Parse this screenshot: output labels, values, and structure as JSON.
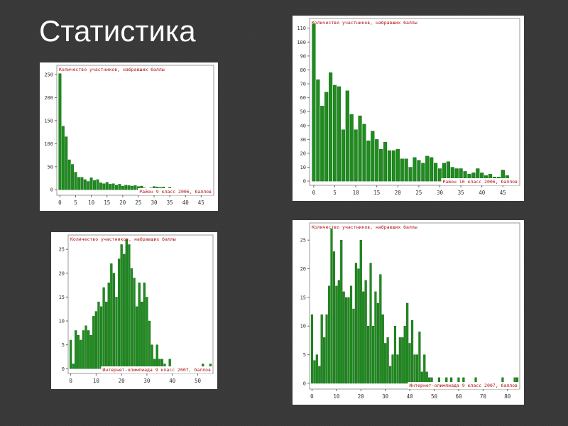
{
  "title": "Статистика",
  "chart_data": [
    {
      "type": "bar",
      "title": "Количество участников, набравших баллы",
      "xlabel": "Район 9 класс 2006, баллов",
      "color": "#1e8c1e",
      "x": [
        0,
        1,
        2,
        3,
        4,
        5,
        6,
        7,
        8,
        9,
        10,
        11,
        12,
        13,
        14,
        15,
        16,
        17,
        18,
        19,
        20,
        21,
        22,
        23,
        24,
        25,
        26,
        27,
        28,
        29,
        30,
        31,
        32,
        33,
        34,
        35,
        36,
        37,
        38,
        39,
        40,
        41,
        42,
        43,
        44,
        45,
        46,
        47
      ],
      "values": [
        252,
        138,
        115,
        65,
        55,
        38,
        27,
        27,
        22,
        18,
        26,
        20,
        22,
        15,
        13,
        16,
        12,
        13,
        10,
        12,
        8,
        10,
        9,
        8,
        9,
        7,
        8,
        4,
        3,
        4,
        7,
        6,
        5,
        6,
        3,
        5,
        3,
        2,
        3,
        2,
        2,
        1,
        2,
        1,
        1,
        1,
        1,
        2
      ],
      "xlim": [
        -1,
        49
      ],
      "ylim": [
        -12,
        270
      ],
      "xticks": [
        0,
        5,
        10,
        15,
        20,
        25,
        30,
        35,
        40,
        45
      ],
      "yticks": [
        0,
        50,
        100,
        150,
        200,
        250
      ]
    },
    {
      "type": "bar",
      "title": "Количество участников, набравших баллы",
      "xlabel": "Район 10 класс 2006, баллов",
      "color": "#1e8c1e",
      "x": [
        0,
        1,
        2,
        3,
        4,
        5,
        6,
        7,
        8,
        9,
        10,
        11,
        12,
        13,
        14,
        15,
        16,
        17,
        18,
        19,
        20,
        21,
        22,
        23,
        24,
        25,
        26,
        27,
        28,
        29,
        30,
        31,
        32,
        33,
        34,
        35,
        36,
        37,
        38,
        39,
        40,
        41,
        42,
        43,
        44,
        45,
        46,
        47
      ],
      "values": [
        113,
        73,
        54,
        64,
        78,
        69,
        68,
        37,
        65,
        48,
        37,
        47,
        41,
        29,
        36,
        30,
        23,
        28,
        22,
        22,
        23,
        16,
        16,
        10,
        17,
        15,
        13,
        18,
        17,
        13,
        9,
        13,
        14,
        10,
        9,
        9,
        7,
        5,
        6,
        9,
        6,
        4,
        5,
        3,
        3,
        8,
        4,
        2
      ],
      "xlim": [
        -1,
        49
      ],
      "ylim": [
        -3,
        117
      ],
      "xticks": [
        0,
        5,
        10,
        15,
        20,
        25,
        30,
        35,
        40,
        45
      ],
      "yticks": [
        0,
        10,
        20,
        30,
        40,
        50,
        60,
        70,
        80,
        90,
        100,
        110
      ]
    },
    {
      "type": "bar",
      "title": "Количество участников, набравших баллы",
      "xlabel": "Интернет-олимпиада 9 класс 2007, баллов",
      "color": "#1e8c1e",
      "x": [
        0,
        1,
        2,
        3,
        4,
        5,
        6,
        7,
        8,
        9,
        10,
        11,
        12,
        13,
        14,
        15,
        16,
        17,
        18,
        19,
        20,
        21,
        22,
        23,
        24,
        25,
        26,
        27,
        28,
        29,
        30,
        31,
        32,
        33,
        34,
        35,
        36,
        37,
        38,
        39,
        40,
        41,
        42,
        43,
        44,
        45,
        46,
        47,
        48,
        49,
        50,
        51,
        52,
        53,
        54,
        55
      ],
      "values": [
        6,
        1,
        8,
        7,
        6,
        8,
        9,
        8,
        7,
        11,
        12,
        14,
        13,
        17,
        14,
        18,
        22,
        20,
        15,
        23,
        26,
        24,
        27,
        26,
        21,
        19,
        13,
        18,
        14,
        18,
        15,
        10,
        5,
        2,
        5,
        2,
        2,
        1,
        0,
        2,
        0,
        0,
        0,
        0,
        0,
        0,
        0,
        0,
        0,
        0,
        0,
        0,
        1,
        0,
        0,
        1
      ],
      "xlim": [
        -1,
        56
      ],
      "ylim": [
        -1,
        28
      ],
      "xticks": [
        0,
        10,
        20,
        30,
        40,
        50
      ],
      "yticks": [
        0,
        5,
        10,
        15,
        20,
        25
      ]
    },
    {
      "type": "bar",
      "title": "Количество участников, набравших баллы",
      "xlabel": "Интернет-олимпиада 9 класс 2007, баллов",
      "color": "#1e8c1e",
      "x": [
        0,
        1,
        2,
        3,
        4,
        5,
        6,
        7,
        8,
        9,
        10,
        11,
        12,
        13,
        14,
        15,
        16,
        17,
        18,
        19,
        20,
        21,
        22,
        23,
        24,
        25,
        26,
        27,
        28,
        29,
        30,
        31,
        32,
        33,
        34,
        35,
        36,
        37,
        38,
        39,
        40,
        41,
        42,
        43,
        44,
        45,
        46,
        47,
        48,
        49,
        50,
        51,
        52,
        53,
        54,
        55,
        56,
        57,
        58,
        59,
        60,
        61,
        62,
        63,
        64,
        65,
        66,
        67,
        68,
        69,
        70,
        71,
        72,
        73,
        74,
        75,
        76,
        77,
        78,
        79,
        80,
        81,
        82,
        83,
        84
      ],
      "values": [
        12,
        4,
        5,
        3,
        12,
        8,
        12,
        17,
        27,
        23,
        17,
        18,
        25,
        16,
        15,
        15,
        17,
        13,
        21,
        20,
        25,
        16,
        18,
        10,
        21,
        10,
        16,
        14,
        19,
        12,
        7,
        8,
        3,
        5,
        10,
        5,
        8,
        8,
        10,
        14,
        7,
        11,
        5,
        5,
        9,
        2,
        5,
        2,
        1,
        1,
        0,
        0,
        1,
        0,
        0,
        1,
        0,
        1,
        0,
        0,
        1,
        0,
        1,
        0,
        0,
        0,
        0,
        1,
        0,
        0,
        0,
        0,
        0,
        0,
        0,
        0,
        0,
        0,
        1,
        0,
        0,
        0,
        0,
        1,
        1
      ],
      "xlim": [
        -1,
        85
      ],
      "ylim": [
        -1,
        28
      ],
      "xticks": [
        0,
        10,
        20,
        30,
        40,
        50,
        60,
        70,
        80
      ],
      "yticks": [
        0,
        5,
        10,
        15,
        20,
        25
      ]
    }
  ]
}
